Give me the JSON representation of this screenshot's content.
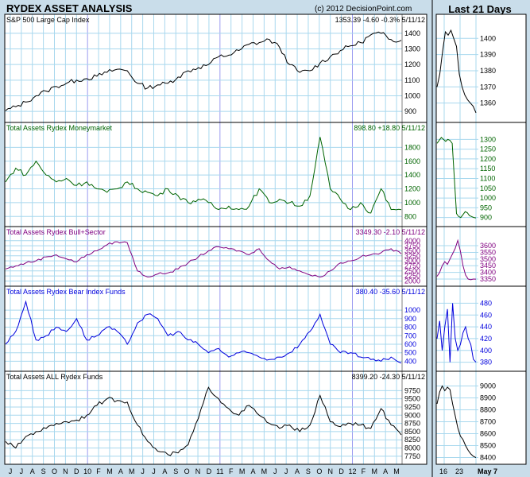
{
  "header": {
    "title": "RYDEX ASSET ANALYSIS",
    "copyright": "(c) 2012 DecisionPoint.com",
    "side_title": "Last 21 Days"
  },
  "x_axis": {
    "months": [
      "J",
      "J",
      "A",
      "S",
      "O",
      "N",
      "D",
      "10",
      "F",
      "M",
      "A",
      "M",
      "J",
      "J",
      "A",
      "S",
      "O",
      "N",
      "D",
      "11",
      "F",
      "M",
      "A",
      "M",
      "J",
      "J",
      "A",
      "S",
      "O",
      "N",
      "D",
      "12",
      "F",
      "M",
      "A",
      "M"
    ],
    "year_markers": [
      "10",
      "11",
      "12"
    ]
  },
  "side_x_axis": [
    "16",
    "23",
    "May 7"
  ],
  "chart_data": [
    {
      "type": "line",
      "title": "S&P 500 Large Cap Index",
      "readout": "1353.39  -4.60  -0.3%  5/11/12",
      "color": "#000000",
      "yticks": [
        900,
        1000,
        1100,
        1200,
        1300,
        1400
      ],
      "ylim": [
        850,
        1450
      ],
      "series": [
        {
          "values": [
            905,
            930,
            960,
            1000,
            1030,
            1060,
            1080,
            1100,
            1110,
            1125,
            1150,
            1170,
            1160,
            1080,
            1050,
            1070,
            1080,
            1120,
            1160,
            1180,
            1200,
            1250,
            1260,
            1290,
            1330,
            1340,
            1360,
            1310,
            1200,
            1150,
            1160,
            1210,
            1250,
            1290,
            1320,
            1340,
            1390,
            1400,
            1360,
            1355
          ]
        }
      ],
      "side": {
        "yticks": [
          1360,
          1370,
          1380,
          1390,
          1400
        ],
        "ylim": [
          1350,
          1408
        ],
        "values": [
          1370,
          1378,
          1392,
          1404,
          1402,
          1405,
          1400,
          1395,
          1378,
          1370,
          1365,
          1362,
          1360,
          1358,
          1354
        ]
      }
    },
    {
      "type": "line",
      "title": "Total Assets Rydex Moneymarket",
      "readout": "898.80  +18.80  5/11/12",
      "color": "#006400",
      "yticks": [
        800,
        1000,
        1200,
        1400,
        1600,
        1800
      ],
      "ylim": [
        700,
        2000
      ],
      "series": [
        {
          "values": [
            1300,
            1500,
            1400,
            1600,
            1400,
            1300,
            1350,
            1250,
            1300,
            1200,
            1150,
            1200,
            1300,
            1200,
            1150,
            1100,
            1200,
            1100,
            1000,
            1050,
            1000,
            900,
            950,
            900,
            950,
            1200,
            1000,
            1050,
            1000,
            950,
            1100,
            1950,
            1200,
            1050,
            900,
            1000,
            850,
            1200,
            900,
            898
          ]
        }
      ],
      "side": {
        "yticks": [
          900,
          950,
          1000,
          1050,
          1100,
          1150,
          1200,
          1250,
          1300
        ],
        "ylim": [
          870,
          1330
        ],
        "values": [
          1280,
          1295,
          1310,
          1300,
          1290,
          1300,
          1295,
          1280,
          1100,
          920,
          905,
          900,
          915,
          930,
          925,
          910,
          905,
          900,
          898
        ]
      }
    },
    {
      "type": "line",
      "title": "Total Assets Rydex Bull+Sector",
      "readout": "3349.30  -2.10  5/11/12",
      "color": "#800080",
      "yticks": [
        2000,
        2250,
        2500,
        2750,
        3000,
        3250,
        3500,
        3750,
        4000
      ],
      "ylim": [
        1900,
        4150
      ],
      "series": [
        {
          "values": [
            2600,
            2750,
            2900,
            3000,
            3200,
            3300,
            3100,
            2950,
            3300,
            3500,
            3800,
            3950,
            3900,
            2500,
            2200,
            2350,
            2400,
            2600,
            2900,
            3200,
            3500,
            3700,
            3600,
            3500,
            3300,
            3600,
            3000,
            2600,
            2700,
            2500,
            2300,
            2200,
            2500,
            2900,
            3000,
            3200,
            3300,
            3400,
            3600,
            3349
          ]
        }
      ],
      "side": {
        "yticks": [
          3350,
          3400,
          3450,
          3500,
          3550,
          3600
        ],
        "ylim": [
          3320,
          3660
        ],
        "values": [
          3370,
          3400,
          3450,
          3480,
          3460,
          3500,
          3540,
          3580,
          3640,
          3560,
          3450,
          3380,
          3350,
          3345,
          3350,
          3349
        ]
      }
    },
    {
      "type": "line",
      "title": "Total Assets Rydex Bear Index Funds",
      "readout": "380.40  -35.60  5/11/12",
      "color": "#0000dd",
      "yticks": [
        400,
        500,
        600,
        700,
        800,
        900,
        1000
      ],
      "ylim": [
        320,
        1150
      ],
      "series": [
        {
          "values": [
            600,
            750,
            1100,
            650,
            700,
            800,
            750,
            900,
            650,
            700,
            800,
            750,
            600,
            850,
            950,
            900,
            700,
            750,
            650,
            600,
            500,
            550,
            450,
            500,
            500,
            450,
            420,
            450,
            500,
            600,
            750,
            950,
            600,
            500,
            500,
            450,
            420,
            400,
            450,
            380
          ]
        }
      ],
      "side": {
        "yticks": [
          380,
          400,
          420,
          440,
          460,
          480
        ],
        "ylim": [
          370,
          490
        ],
        "values": [
          420,
          450,
          400,
          440,
          470,
          380,
          480,
          420,
          400,
          410,
          430,
          440,
          420,
          410,
          385,
          380
        ]
      }
    },
    {
      "type": "line",
      "title": "Total Assets ALL Rydex Funds",
      "readout": "8399.20  -24.30  5/11/12",
      "color": "#000000",
      "yticks": [
        7750,
        8000,
        8250,
        8500,
        8750,
        9000,
        9250,
        9500,
        9750
      ],
      "ylim": [
        7600,
        10000
      ],
      "series": [
        {
          "values": [
            8200,
            8000,
            8350,
            8500,
            8600,
            8750,
            8800,
            8850,
            9000,
            9300,
            9500,
            9450,
            9400,
            8700,
            8200,
            7900,
            7800,
            7850,
            8100,
            8900,
            9850,
            9500,
            9200,
            9000,
            9300,
            9000,
            8750,
            8600,
            8700,
            8500,
            8700,
            9600,
            8800,
            8650,
            8750,
            8700,
            8600,
            9200,
            8700,
            8399
          ]
        }
      ],
      "side": {
        "yticks": [
          8400,
          8500,
          8600,
          8700,
          8800,
          8900,
          9000
        ],
        "ylim": [
          8370,
          9030
        ],
        "values": [
          8850,
          8950,
          9000,
          8960,
          8990,
          8970,
          8850,
          8750,
          8650,
          8580,
          8550,
          8500,
          8460,
          8430,
          8410,
          8399
        ]
      }
    }
  ]
}
